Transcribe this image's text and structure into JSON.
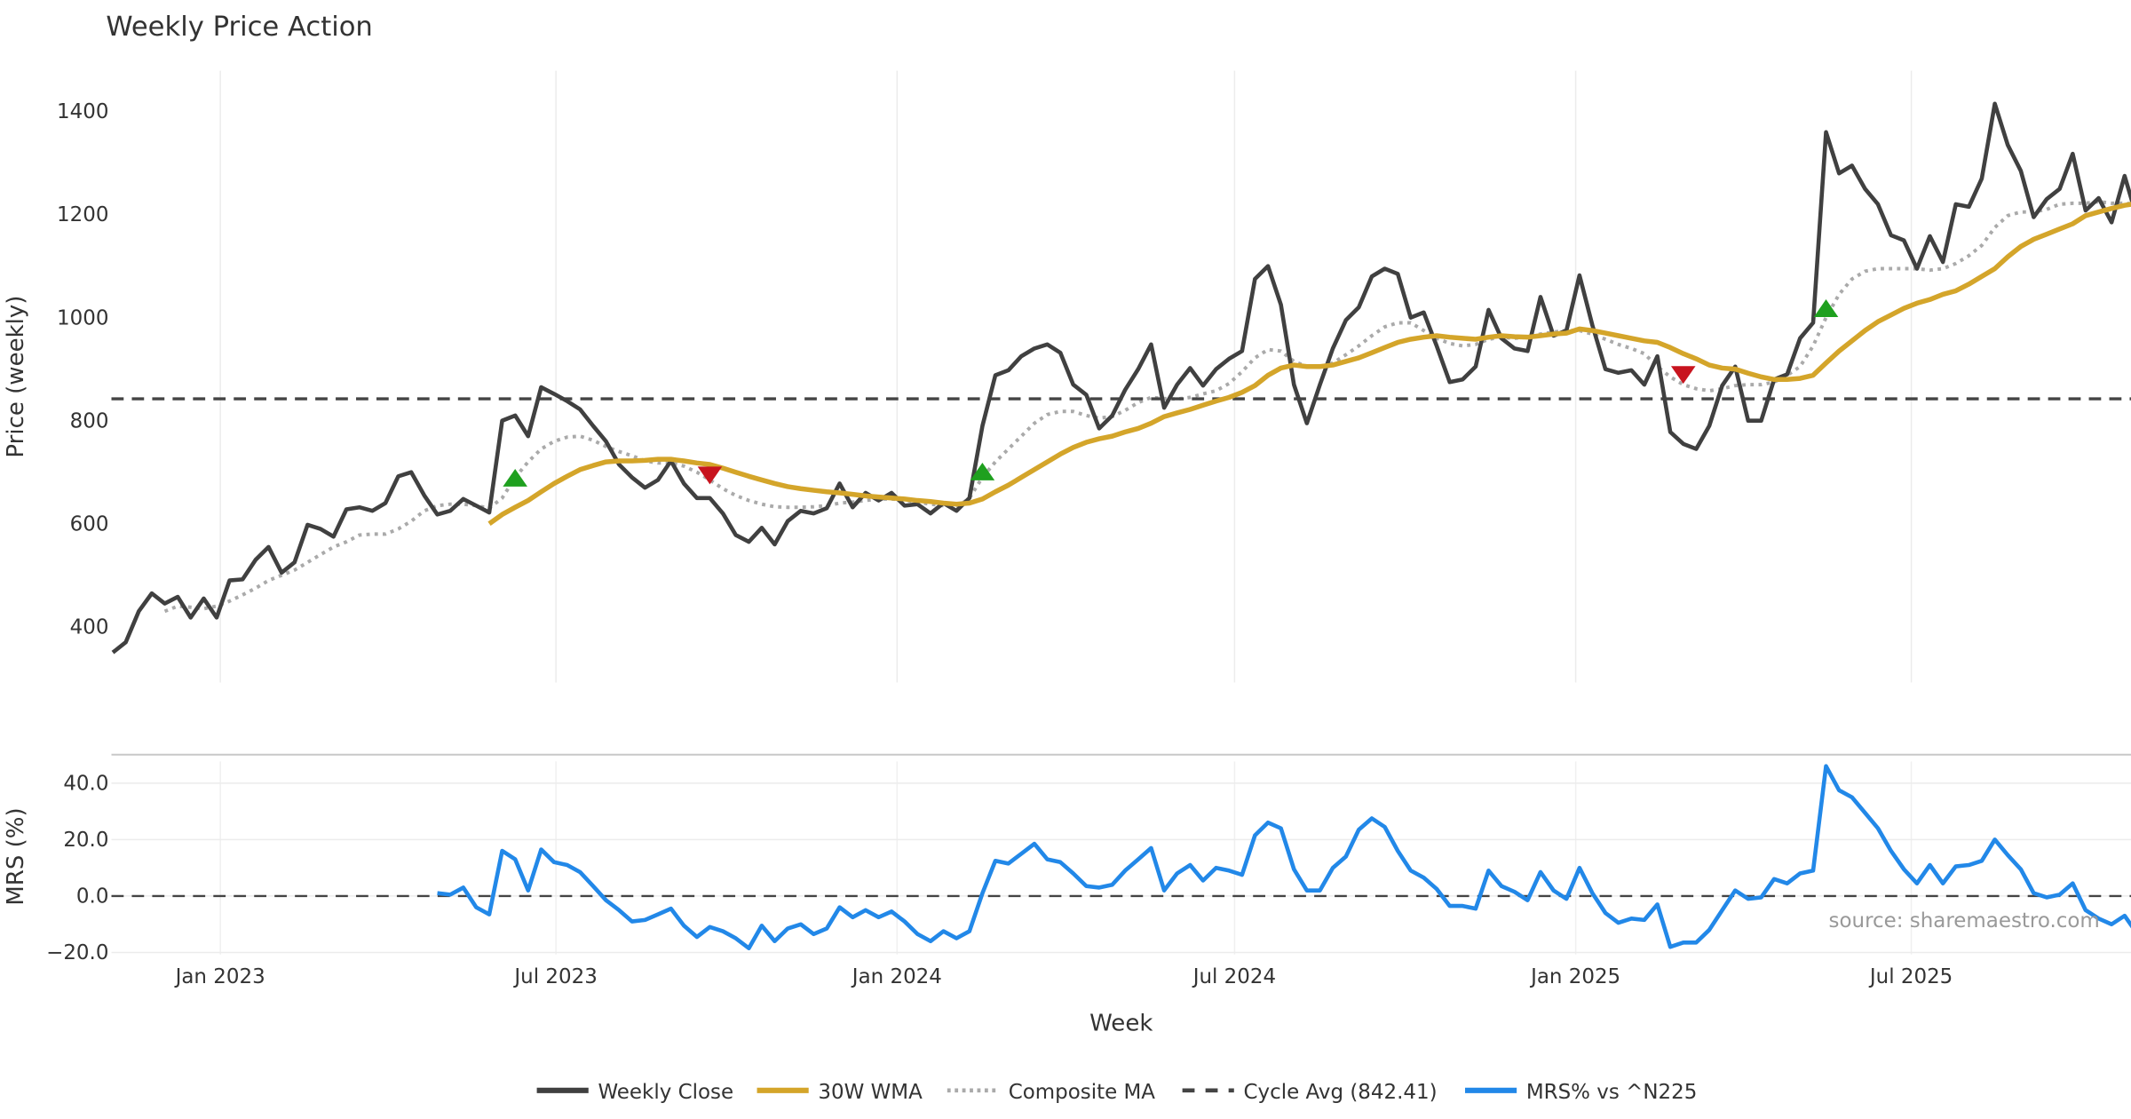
{
  "chart_data": [
    {
      "type": "line",
      "title": "Weekly Price Action",
      "ylabel": "Price (weekly)",
      "ylim": [
        300,
        1480
      ],
      "yticks": [
        400,
        600,
        800,
        1000,
        1200,
        1400
      ],
      "x_start": "2022-11-04",
      "x_step_days": 7,
      "grid": "vertical",
      "series": [
        {
          "name": "Weekly Close",
          "color": "#404040",
          "style": "solid",
          "start_index": 0,
          "values": [
            350,
            370,
            430,
            465,
            445,
            458,
            418,
            455,
            418,
            490,
            492,
            530,
            555,
            505,
            525,
            598,
            590,
            575,
            628,
            632,
            625,
            640,
            692,
            700,
            655,
            618,
            625,
            648,
            635,
            622,
            800,
            810,
            770,
            865,
            852,
            838,
            822,
            790,
            760,
            715,
            690,
            670,
            685,
            722,
            678,
            650,
            650,
            620,
            578,
            565,
            592,
            560,
            605,
            625,
            620,
            630,
            678,
            632,
            660,
            645,
            660,
            635,
            638,
            620,
            640,
            625,
            650,
            790,
            888,
            898,
            925,
            940,
            948,
            932,
            870,
            850,
            785,
            810,
            860,
            900,
            948,
            825,
            870,
            902,
            868,
            900,
            920,
            935,
            1075,
            1100,
            1025,
            870,
            795,
            870,
            940,
            995,
            1020,
            1080,
            1095,
            1085,
            1000,
            1010,
            945,
            875,
            880,
            905,
            1015,
            960,
            940,
            935,
            1040,
            965,
            975,
            1082,
            985,
            900,
            893,
            898,
            870,
            925,
            778,
            755,
            745,
            790,
            868,
            905,
            800,
            800,
            880,
            890,
            960,
            990,
            1360,
            1280,
            1295,
            1250,
            1220,
            1160,
            1150,
            1095,
            1158,
            1108,
            1220,
            1215,
            1270,
            1415,
            1335,
            1285,
            1195,
            1230,
            1250,
            1318,
            1208,
            1232,
            1185,
            1275,
            1190
          ]
        },
        {
          "name": "30W WMA",
          "color": "#D4A52A",
          "style": "solid",
          "start_index": 29,
          "values": [
            600,
            618,
            632,
            645,
            662,
            678,
            692,
            705,
            713,
            720,
            722,
            722,
            723,
            725,
            725,
            722,
            718,
            715,
            708,
            700,
            692,
            685,
            678,
            672,
            668,
            665,
            662,
            660,
            657,
            654,
            652,
            650,
            648,
            645,
            643,
            640,
            638,
            640,
            648,
            662,
            675,
            690,
            705,
            720,
            735,
            748,
            758,
            765,
            770,
            778,
            785,
            795,
            808,
            815,
            822,
            830,
            838,
            845,
            855,
            868,
            888,
            902,
            908,
            905,
            905,
            908,
            915,
            922,
            932,
            942,
            952,
            958,
            962,
            965,
            962,
            960,
            958,
            962,
            965,
            963,
            962,
            965,
            968,
            970,
            978,
            975,
            970,
            965,
            960,
            955,
            952,
            942,
            930,
            920,
            908,
            902,
            900,
            892,
            885,
            880,
            880,
            882,
            888,
            912,
            935,
            955,
            975,
            992,
            1005,
            1018,
            1028,
            1035,
            1045,
            1052,
            1065,
            1080,
            1095,
            1118,
            1138,
            1152,
            1162,
            1172,
            1182,
            1198,
            1205,
            1212,
            1218,
            1222
          ]
        },
        {
          "name": "Composite MA",
          "color": "#AAAAAA",
          "style": "dotted",
          "start_index": 4,
          "values": [
            430,
            440,
            438,
            435,
            440,
            450,
            462,
            475,
            490,
            500,
            510,
            525,
            540,
            555,
            565,
            578,
            580,
            580,
            590,
            605,
            625,
            635,
            638,
            638,
            635,
            630,
            650,
            690,
            720,
            745,
            760,
            768,
            770,
            762,
            750,
            740,
            732,
            722,
            718,
            718,
            712,
            700,
            685,
            668,
            655,
            645,
            638,
            633,
            632,
            632,
            633,
            635,
            640,
            642,
            645,
            648,
            648,
            646,
            642,
            638,
            635,
            632,
            650,
            690,
            720,
            745,
            770,
            795,
            812,
            818,
            818,
            810,
            805,
            808,
            820,
            835,
            845,
            843,
            842,
            845,
            852,
            858,
            872,
            895,
            922,
            938,
            935,
            915,
            905,
            905,
            912,
            928,
            945,
            965,
            982,
            990,
            990,
            975,
            960,
            950,
            945,
            948,
            958,
            962,
            960,
            962,
            968,
            972,
            975,
            975,
            968,
            958,
            948,
            940,
            930,
            905,
            885,
            870,
            862,
            858,
            862,
            868,
            870,
            870,
            875,
            888,
            905,
            945,
            1000,
            1045,
            1075,
            1090,
            1095,
            1095,
            1095,
            1095,
            1092,
            1095,
            1105,
            1120,
            1140,
            1175,
            1198,
            1205,
            1205,
            1210,
            1220,
            1222,
            1222,
            1225,
            1222,
            1222,
            1220
          ]
        },
        {
          "name": "Cycle Avg (842.41)",
          "color": "#444444",
          "style": "dashed",
          "constant": 842.41
        }
      ],
      "signals": {
        "buy": {
          "color": "#1FA01F",
          "points": [
            {
              "index": 31,
              "value": 688
            },
            {
              "index": 67,
              "value": 700
            },
            {
              "index": 132,
              "value": 1017
            }
          ]
        },
        "sell": {
          "color": "#C8141E",
          "points": [
            {
              "index": 46,
              "value": 695
            },
            {
              "index": 121,
              "value": 890
            }
          ]
        }
      }
    },
    {
      "type": "line",
      "ylabel": "MRS (%)",
      "xlabel": "Week",
      "ylim": [
        -22,
        50
      ],
      "yticks": [
        "40.0",
        "20.0",
        "0.0",
        "−20.0"
      ],
      "ytick_values": [
        40,
        20,
        0,
        -20
      ],
      "xticks": [
        {
          "label": "Jan 2023",
          "date": "2023-01-01"
        },
        {
          "label": "Jul 2023",
          "date": "2023-07-01"
        },
        {
          "label": "Jan 2024",
          "date": "2024-01-01"
        },
        {
          "label": "Jul 2024",
          "date": "2024-07-01"
        },
        {
          "label": "Jan 2025",
          "date": "2025-01-01"
        },
        {
          "label": "Jul 2025",
          "date": "2025-07-01"
        }
      ],
      "series": [
        {
          "name": "MRS% vs ^N225",
          "color": "#2288E8",
          "style": "solid",
          "start_index": 25,
          "values": [
            1,
            0.5,
            3,
            -4,
            -6.5,
            16,
            13,
            2,
            16.5,
            12,
            11,
            8.5,
            3.5,
            -1.5,
            -5,
            -9,
            -8.5,
            -6.5,
            -4.5,
            -10.5,
            -14.5,
            -11,
            -12.5,
            -15,
            -18.5,
            -10.5,
            -16,
            -11.5,
            -10,
            -13.5,
            -11.5,
            -4,
            -7.5,
            -5,
            -7.5,
            -5.5,
            -9,
            -13.5,
            -16,
            -12.5,
            -15,
            -12.5,
            1,
            12.5,
            11.5,
            15,
            18.5,
            13,
            12,
            8,
            3.5,
            3,
            4,
            9,
            13,
            17,
            2,
            8,
            11,
            5.5,
            10,
            9,
            7.5,
            21.5,
            26,
            24,
            9.5,
            2,
            2,
            10,
            14,
            23.5,
            27.5,
            24.5,
            16,
            9,
            6.5,
            2.5,
            -3.5,
            -3.5,
            -4.5,
            9,
            3.5,
            1.5,
            -1.5,
            8.5,
            2,
            -1,
            10,
            1,
            -6,
            -9.5,
            -8,
            -8.5,
            -3,
            -18,
            -16.5,
            -16.5,
            -12,
            -5,
            2,
            -1,
            -0.5,
            6,
            4.5,
            8,
            9,
            46,
            37.5,
            35,
            29.5,
            24,
            16,
            9.5,
            4.5,
            11,
            4.5,
            10.5,
            11,
            12.5,
            20,
            14.5,
            9.5,
            1,
            -0.5,
            0.5,
            4.5,
            -5,
            -8,
            -10,
            -7,
            -13.5
          ]
        },
        {
          "name": "zero",
          "color": "#444444",
          "style": "dashed",
          "constant": 0
        }
      ],
      "annotation": "source: sharemaestro.com"
    }
  ],
  "legend": {
    "position": "bottom-center",
    "items": [
      {
        "label": "Weekly Close",
        "color": "#404040",
        "style": "solid"
      },
      {
        "label": "30W WMA",
        "color": "#D4A52A",
        "style": "solid"
      },
      {
        "label": "Composite MA",
        "color": "#AAAAAA",
        "style": "dotted"
      },
      {
        "label": "Cycle Avg (842.41)",
        "color": "#444444",
        "style": "dashed"
      },
      {
        "label": "MRS% vs ^N225",
        "color": "#2288E8",
        "style": "solid"
      }
    ]
  }
}
